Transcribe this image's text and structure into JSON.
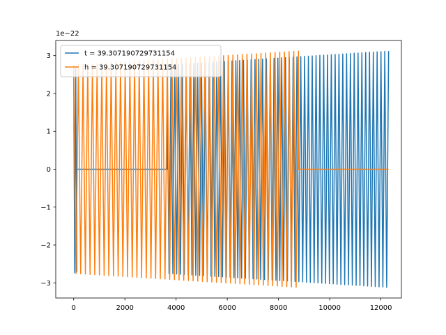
{
  "chart_data": {
    "type": "line",
    "title": "",
    "xlabel": "",
    "ylabel": "",
    "y_scale_label": "1e−22",
    "xlim": [
      -700,
      12800
    ],
    "ylim": [
      -3.4,
      3.4
    ],
    "x_ticks": [
      0,
      2000,
      4000,
      6000,
      8000,
      10000,
      12000
    ],
    "x_tick_labels": [
      "0",
      "2000",
      "4000",
      "6000",
      "8000",
      "10000",
      "12000"
    ],
    "y_ticks": [
      -3,
      -2,
      -1,
      0,
      1,
      2,
      3
    ],
    "y_tick_labels": [
      "−3",
      "−2",
      "−1",
      "0",
      "1",
      "2",
      "3"
    ],
    "grid": false,
    "legend_position": "top-left",
    "series": [
      {
        "name": "t = 39.307190729731154",
        "color": "#1f77b4",
        "segments": [
          {
            "kind": "oscillation",
            "x_start": 0,
            "x_end": 120,
            "cycles": 1.5,
            "amp_start": 2.75,
            "amp_end": 2.7
          },
          {
            "kind": "flat",
            "x_start": 120,
            "x_end": 3650,
            "value": 0
          },
          {
            "kind": "oscillation",
            "x_start": 3650,
            "x_end": 12300,
            "cycles": 58,
            "amp_start": 2.75,
            "amp_end": 3.12
          }
        ]
      },
      {
        "name": "h = 39.307190729731154",
        "color": "#ff7f0e",
        "segments": [
          {
            "kind": "oscillation",
            "x_start": 0,
            "x_end": 8780,
            "cycles": 48,
            "amp_start": 2.75,
            "amp_end": 3.12
          },
          {
            "kind": "flat",
            "x_start": 8780,
            "x_end": 12300,
            "value": 0
          }
        ]
      }
    ]
  }
}
